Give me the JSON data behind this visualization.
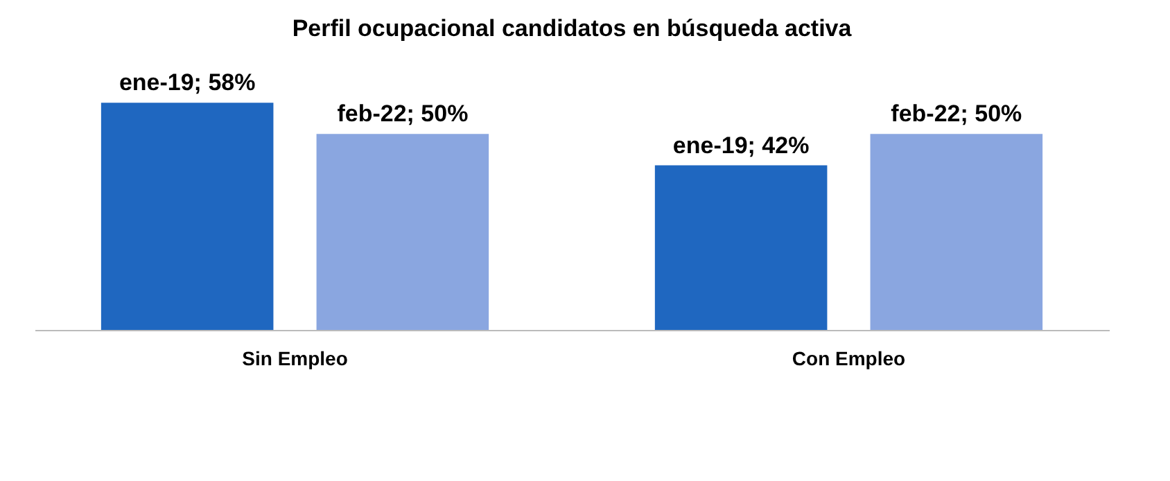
{
  "chart_data": {
    "type": "bar",
    "title": "Perfil ocupacional  candidatos  en  búsqueda  activa",
    "categories": [
      "Sin Empleo",
      "Con Empleo"
    ],
    "series": [
      {
        "color": "#1f67c0",
        "values": [
          58,
          42
        ],
        "value_labels": [
          "ene-19; 58%",
          "ene-19; 42%"
        ]
      },
      {
        "color": "#8aa6e0",
        "values": [
          50,
          50
        ],
        "value_labels": [
          "feb-22; 50%",
          "feb-22; 50%"
        ]
      }
    ],
    "tick_labels": "x",
    "grid": false,
    "legend": false
  }
}
